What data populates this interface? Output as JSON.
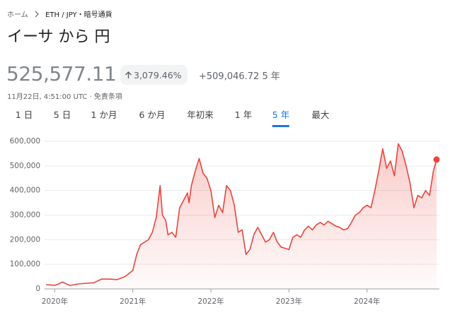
{
  "breadcrumb": {
    "home": "ホーム",
    "pair": "ETH / JPY・暗号通貨"
  },
  "title": "イーサ から 円",
  "price": "525,577.11",
  "change_percent": "3,079.46%",
  "change": "+509,046.72",
  "period": "5 年",
  "timestamp": "11月22日, 4:51:00 UTC",
  "disclaimer": "免責条項",
  "tabs": [
    "1 日",
    "5 日",
    "1 か月",
    "6 か月",
    "年初来",
    "1 年",
    "5 年",
    "最大"
  ],
  "selected_tab": 6,
  "chart_data": {
    "type": "area",
    "color": "#e8453c",
    "x": [
      2019.89,
      2020.0,
      2020.05,
      2020.1,
      2020.15,
      2020.2,
      2020.3,
      2020.4,
      2020.5,
      2020.6,
      2020.7,
      2020.8,
      2020.9,
      2021.0,
      2021.05,
      2021.1,
      2021.15,
      2021.2,
      2021.25,
      2021.3,
      2021.35,
      2021.38,
      2021.42,
      2021.45,
      2021.5,
      2021.55,
      2021.6,
      2021.65,
      2021.7,
      2021.72,
      2021.75,
      2021.8,
      2021.85,
      2021.9,
      2021.95,
      2022.0,
      2022.05,
      2022.1,
      2022.15,
      2022.2,
      2022.25,
      2022.3,
      2022.35,
      2022.4,
      2022.45,
      2022.5,
      2022.55,
      2022.6,
      2022.65,
      2022.7,
      2022.75,
      2022.8,
      2022.85,
      2022.9,
      2022.95,
      2023.0,
      2023.05,
      2023.1,
      2023.15,
      2023.2,
      2023.25,
      2023.3,
      2023.35,
      2023.4,
      2023.45,
      2023.5,
      2023.55,
      2023.6,
      2023.65,
      2023.7,
      2023.75,
      2023.8,
      2023.85,
      2023.9,
      2023.95,
      2024.0,
      2024.05,
      2024.1,
      2024.15,
      2024.2,
      2024.25,
      2024.3,
      2024.35,
      2024.4,
      2024.45,
      2024.5,
      2024.55,
      2024.6,
      2024.65,
      2024.7,
      2024.75,
      2024.8,
      2024.85,
      2024.89
    ],
    "values": [
      17000,
      15000,
      20000,
      28000,
      20000,
      14000,
      20000,
      23000,
      25000,
      40000,
      40000,
      38000,
      50000,
      75000,
      140000,
      180000,
      190000,
      200000,
      230000,
      290000,
      420000,
      300000,
      280000,
      220000,
      230000,
      210000,
      330000,
      360000,
      390000,
      350000,
      420000,
      480000,
      530000,
      470000,
      450000,
      400000,
      290000,
      340000,
      310000,
      420000,
      400000,
      340000,
      230000,
      240000,
      140000,
      160000,
      220000,
      250000,
      220000,
      190000,
      200000,
      230000,
      190000,
      170000,
      165000,
      160000,
      210000,
      220000,
      210000,
      240000,
      255000,
      240000,
      260000,
      270000,
      260000,
      275000,
      265000,
      255000,
      250000,
      240000,
      245000,
      270000,
      300000,
      310000,
      330000,
      340000,
      330000,
      400000,
      480000,
      570000,
      490000,
      520000,
      460000,
      590000,
      560000,
      500000,
      430000,
      330000,
      380000,
      370000,
      400000,
      380000,
      480000,
      525577.11
    ],
    "xlim": [
      2019.87,
      2024.89
    ],
    "xticks": [
      {
        "value": 2020,
        "label": "2020年"
      },
      {
        "value": 2021,
        "label": "2021年"
      },
      {
        "value": 2022,
        "label": "2022年"
      },
      {
        "value": 2023,
        "label": "2023年"
      },
      {
        "value": 2024,
        "label": "2024年"
      }
    ],
    "ylim": [
      0,
      600000
    ],
    "yticks": [
      0,
      {
        "value": 100000,
        "label": "100,000"
      },
      {
        "value": 200000,
        "label": "200,000"
      },
      {
        "value": 300000,
        "label": "300,000"
      },
      {
        "value": 400000,
        "label": "400,000"
      },
      {
        "value": 500000,
        "label": "500,000"
      },
      {
        "value": 600000,
        "label": "600,000"
      }
    ],
    "grid": true
  }
}
